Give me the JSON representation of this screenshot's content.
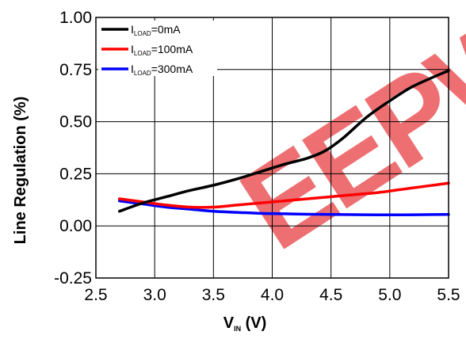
{
  "chart_data": {
    "type": "line",
    "xlabel_main": "V",
    "xlabel_sub": "IN",
    "xlabel_unit": " (V)",
    "ylabel": "Line Regulation (%)",
    "xlim": [
      2.5,
      5.5
    ],
    "ylim": [
      -0.25,
      1.0
    ],
    "x_ticks": [
      "2.5",
      "3.0",
      "3.5",
      "4.0",
      "4.5",
      "5.0",
      "5.5"
    ],
    "y_ticks": [
      "1.00",
      "0.75",
      "0.50",
      "0.25",
      "0.00",
      "-0.25"
    ],
    "grid": true,
    "legend_position": "top-left",
    "series": [
      {
        "name": "I_LOAD=0mA",
        "label_main": "I",
        "label_sub": "LOAD",
        "label_rest": "=0mA",
        "color": "#000000",
        "x": [
          2.7,
          2.9,
          3.1,
          3.3,
          3.5,
          3.7,
          3.9,
          4.1,
          4.3,
          4.45,
          4.6,
          4.8,
          5.0,
          5.2,
          5.5
        ],
        "y": [
          0.07,
          0.11,
          0.14,
          0.17,
          0.195,
          0.225,
          0.26,
          0.295,
          0.325,
          0.36,
          0.42,
          0.52,
          0.6,
          0.67,
          0.745
        ]
      },
      {
        "name": "I_LOAD=100mA",
        "label_main": "I",
        "label_sub": "LOAD",
        "label_rest": "=100mA",
        "color": "#ff0000",
        "x": [
          2.7,
          2.9,
          3.1,
          3.3,
          3.5,
          3.7,
          3.9,
          4.1,
          4.3,
          4.5,
          4.7,
          4.9,
          5.1,
          5.3,
          5.5
        ],
        "y": [
          0.13,
          0.115,
          0.1,
          0.09,
          0.09,
          0.1,
          0.11,
          0.12,
          0.13,
          0.14,
          0.15,
          0.16,
          0.175,
          0.19,
          0.205
        ]
      },
      {
        "name": "I_LOAD=300mA",
        "label_main": "I",
        "label_sub": "LOAD",
        "label_rest": "=300mA",
        "color": "#0000ff",
        "x": [
          2.7,
          2.9,
          3.1,
          3.3,
          3.5,
          3.7,
          3.9,
          4.1,
          4.3,
          4.5,
          4.7,
          4.9,
          5.1,
          5.3,
          5.5
        ],
        "y": [
          0.12,
          0.105,
          0.09,
          0.08,
          0.07,
          0.065,
          0.06,
          0.058,
          0.056,
          0.055,
          0.054,
          0.053,
          0.053,
          0.054,
          0.055
        ]
      }
    ]
  },
  "watermark": {
    "text": "EEPW",
    "color": "#e8383d"
  }
}
